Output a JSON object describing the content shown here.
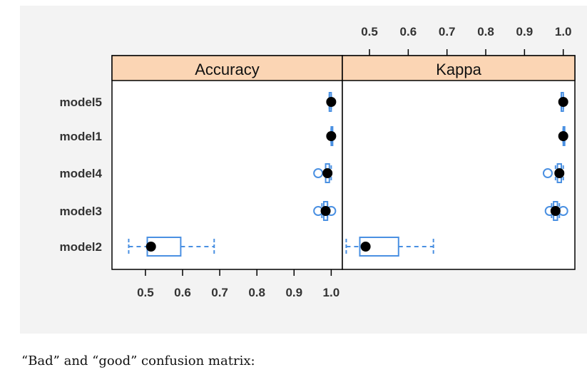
{
  "chart_data": {
    "type": "box",
    "categories": [
      "model5",
      "model1",
      "model4",
      "model3",
      "model2"
    ],
    "panels": [
      {
        "name": "Accuracy",
        "xlim": [
          0.41,
          1.03
        ],
        "ticks": [
          "0.5",
          "0.6",
          "0.7",
          "0.8",
          "0.9",
          "1.0"
        ],
        "tick_values": [
          0.5,
          0.6,
          0.7,
          0.8,
          0.9,
          1.0
        ],
        "axis_side": "bottom",
        "boxes": [
          {
            "model": "model5",
            "min": 0.995,
            "q1": 0.995,
            "median": 1.0,
            "q3": 1.0,
            "max": 1.0,
            "outliers": []
          },
          {
            "model": "model1",
            "min": 1.0,
            "q1": 1.0,
            "median": 1.0,
            "q3": 1.0,
            "max": 1.0,
            "outliers": []
          },
          {
            "model": "model4",
            "min": 0.985,
            "q1": 0.985,
            "median": 0.99,
            "q3": 0.995,
            "max": 1.0,
            "outliers": [
              0.965
            ]
          },
          {
            "model": "model3",
            "min": 0.975,
            "q1": 0.98,
            "median": 0.985,
            "q3": 0.99,
            "max": 0.99,
            "outliers": [
              0.965,
              1.0
            ]
          },
          {
            "model": "model2",
            "min": 0.455,
            "q1": 0.505,
            "median": 0.515,
            "q3": 0.595,
            "max": 0.685,
            "outliers": []
          }
        ]
      },
      {
        "name": "Kappa",
        "xlim": [
          0.43,
          1.03
        ],
        "ticks": [
          "0.5",
          "0.6",
          "0.7",
          "0.8",
          "0.9",
          "1.0"
        ],
        "tick_values": [
          0.5,
          0.6,
          0.7,
          0.8,
          0.9,
          1.0
        ],
        "axis_side": "top",
        "boxes": [
          {
            "model": "model5",
            "min": 0.995,
            "q1": 0.995,
            "median": 1.0,
            "q3": 1.0,
            "max": 1.0,
            "outliers": []
          },
          {
            "model": "model1",
            "min": 1.0,
            "q1": 1.0,
            "median": 1.0,
            "q3": 1.0,
            "max": 1.0,
            "outliers": []
          },
          {
            "model": "model4",
            "min": 0.98,
            "q1": 0.985,
            "median": 0.99,
            "q3": 0.995,
            "max": 1.0,
            "outliers": [
              0.96
            ]
          },
          {
            "model": "model3",
            "min": 0.97,
            "q1": 0.975,
            "median": 0.98,
            "q3": 0.985,
            "max": 0.99,
            "outliers": [
              0.965,
              1.0
            ]
          },
          {
            "model": "model2",
            "min": 0.44,
            "q1": 0.475,
            "median": 0.49,
            "q3": 0.575,
            "max": 0.665,
            "outliers": []
          }
        ]
      }
    ],
    "colors": {
      "box": "#4a90e2",
      "median_dot": "#000000",
      "strip": "#fbd5b4",
      "frame": "#000000"
    }
  },
  "caption": "“Bad” and “good” confusion matrix:"
}
